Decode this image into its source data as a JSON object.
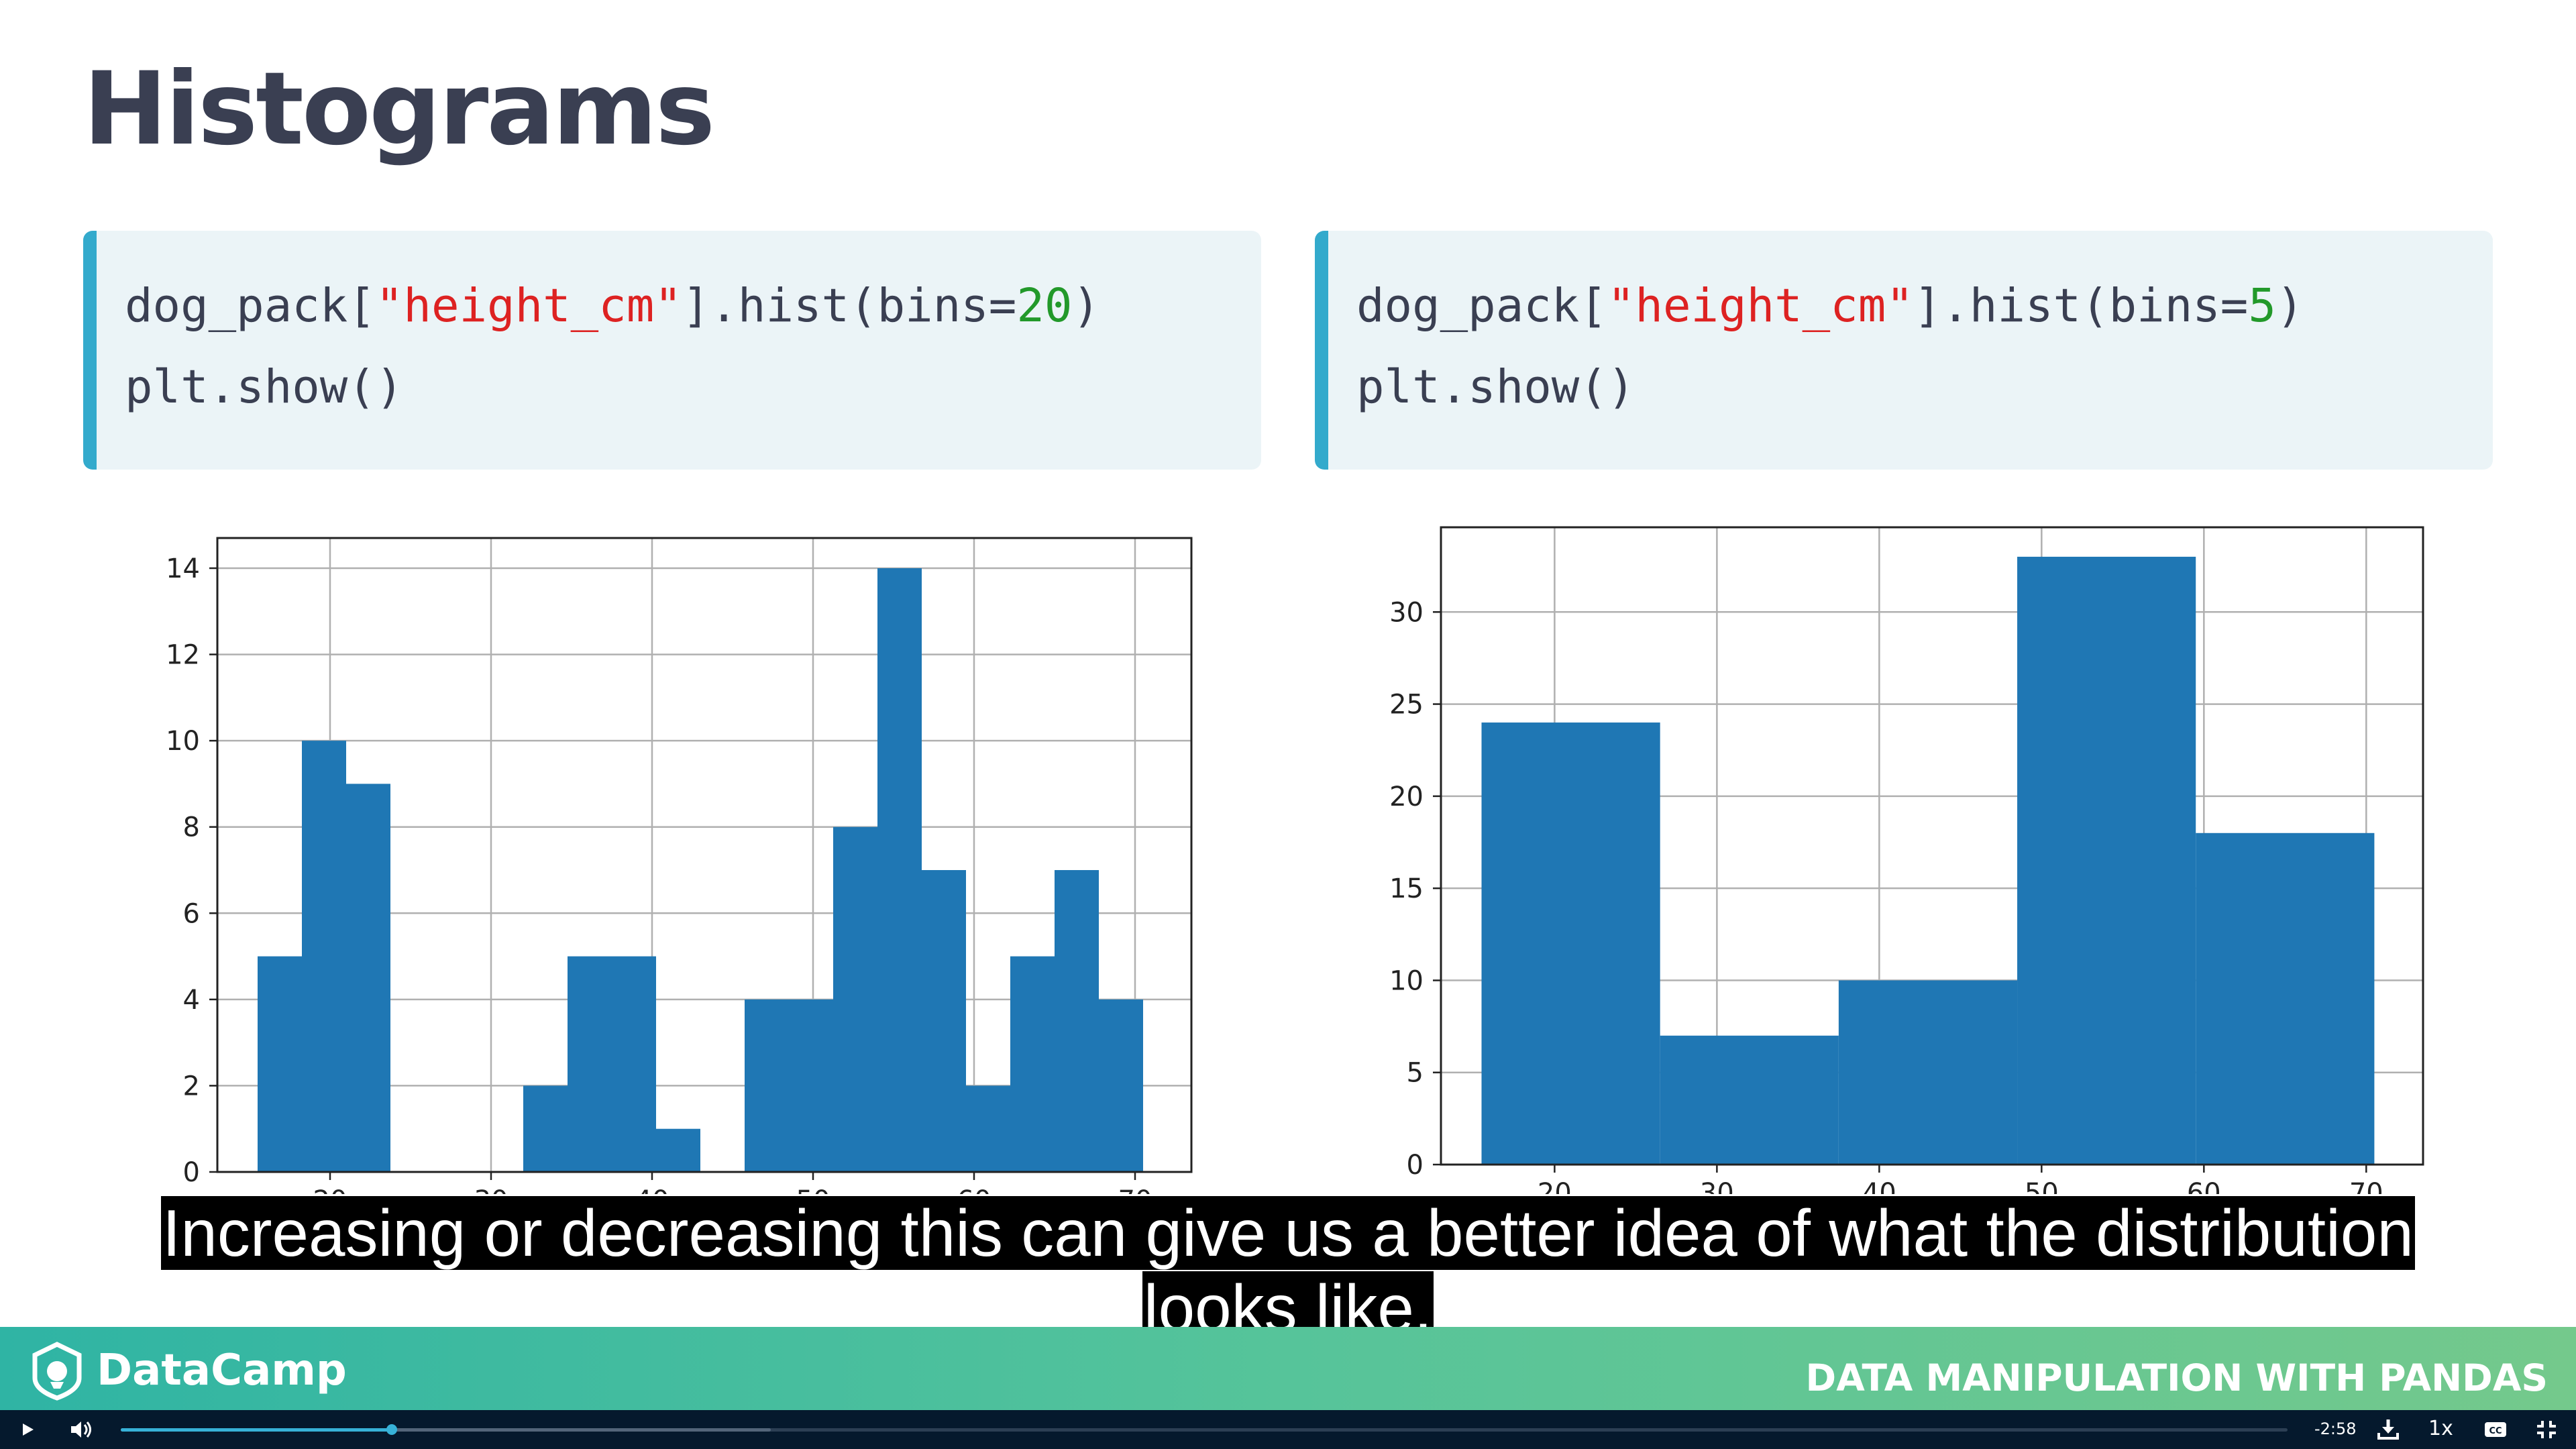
{
  "slide": {
    "title": "Histograms",
    "caption": "Increasing or decreasing this can give us a better idea of what the distribution looks like."
  },
  "code_blocks": [
    {
      "line1": [
        "dog_pack[",
        "\"height_cm\"",
        "].hist(bins=",
        "20",
        ")"
      ],
      "line2": "plt.show()"
    },
    {
      "line1": [
        "dog_pack[",
        "\"height_cm\"",
        "].hist(bins=",
        "5",
        ")"
      ],
      "line2": "plt.show()"
    }
  ],
  "chart_data": [
    {
      "type": "bar",
      "bins": 20,
      "edges": [
        15.5,
        18.25,
        21.0,
        23.75,
        26.5,
        29.25,
        32.0,
        34.75,
        37.5,
        40.25,
        43.0,
        45.75,
        48.5,
        51.25,
        54.0,
        56.75,
        59.5,
        62.25,
        65.0,
        67.75,
        70.5
      ],
      "values": [
        5,
        10,
        9,
        0,
        0,
        0,
        2,
        5,
        5,
        1,
        0,
        4,
        4,
        8,
        14,
        7,
        2,
        5,
        7,
        4
      ],
      "xlim": [
        13,
        73.5
      ],
      "ylim": [
        0,
        14.7
      ],
      "xticks": [
        20,
        30,
        40,
        50,
        60,
        70
      ],
      "yticks": [
        0,
        2,
        4,
        6,
        8,
        10,
        12,
        14
      ],
      "grid": true,
      "bar_color": "#1f77b4"
    },
    {
      "type": "bar",
      "bins": 5,
      "edges": [
        15.5,
        26.5,
        37.5,
        48.5,
        59.5,
        70.5
      ],
      "values": [
        24,
        7,
        10,
        33,
        18
      ],
      "xlim": [
        13,
        73.5
      ],
      "ylim": [
        0,
        34.6
      ],
      "xticks": [
        20,
        30,
        40,
        50,
        60,
        70
      ],
      "yticks": [
        0,
        5,
        10,
        15,
        20,
        25,
        30
      ],
      "grid": true,
      "bar_color": "#1f77b4"
    }
  ],
  "footer": {
    "logo_text": "DataCamp",
    "course_title": "DATA MANIPULATION WITH PANDAS"
  },
  "player": {
    "time_remaining": "-2:58",
    "speed": "1x",
    "progress_fraction": 0.125,
    "buffered_fraction": 0.3
  },
  "icons": {
    "play": "play-icon",
    "volume": "volume-icon",
    "download": "download-icon",
    "captions": "captions-icon",
    "fullscreen": "fullscreen-icon",
    "logo": "datacamp-logo-icon"
  }
}
